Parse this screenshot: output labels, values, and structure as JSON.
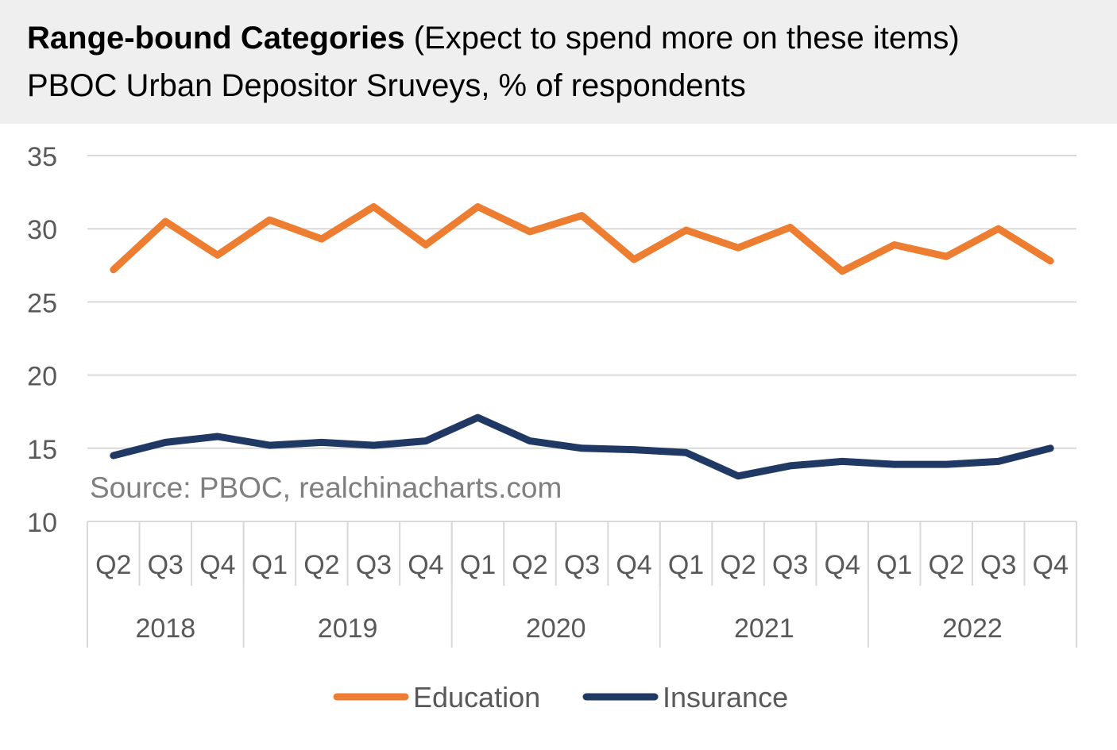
{
  "header": {
    "title_bold": "Range-bound Categories",
    "title_rest": "(Expect to spend more on these items)",
    "subtitle": "PBOC Urban Depositor Sruveys, % of respondents"
  },
  "source_note": "Source: PBOC, realchinacharts.com",
  "colors": {
    "education": "#ED7D31",
    "insurance": "#203864",
    "gridline": "#D9D9D9",
    "axis_text": "#595959",
    "header_bg": "#EFEFEF",
    "source_text": "#7F7F7F"
  },
  "chart_data": {
    "type": "line",
    "title": "Range-bound Categories (Expect to spend more on these items)",
    "subtitle": "PBOC Urban Depositor Sruveys, % of respondents",
    "x": [
      "Q2",
      "Q3",
      "Q4",
      "Q1",
      "Q2",
      "Q3",
      "Q4",
      "Q1",
      "Q2",
      "Q3",
      "Q4",
      "Q1",
      "Q2",
      "Q3",
      "Q4",
      "Q1",
      "Q2",
      "Q3",
      "Q4"
    ],
    "year_groups": [
      {
        "label": "2018",
        "count": 3
      },
      {
        "label": "2019",
        "count": 4
      },
      {
        "label": "2020",
        "count": 4
      },
      {
        "label": "2021",
        "count": 4
      },
      {
        "label": "2022",
        "count": 4
      }
    ],
    "ylim": [
      10,
      35
    ],
    "yticks": [
      10,
      15,
      20,
      25,
      30,
      35
    ],
    "grid": true,
    "legend": "bottom",
    "series": [
      {
        "name": "Education",
        "values": [
          27.2,
          30.5,
          28.2,
          30.6,
          29.3,
          31.5,
          28.9,
          31.5,
          29.8,
          30.9,
          27.9,
          29.9,
          28.7,
          30.1,
          27.1,
          28.9,
          28.1,
          30.0,
          27.8
        ]
      },
      {
        "name": "Insurance",
        "values": [
          14.5,
          15.4,
          15.8,
          15.2,
          15.4,
          15.2,
          15.5,
          17.1,
          15.5,
          15.0,
          14.9,
          14.7,
          13.1,
          13.8,
          14.1,
          13.9,
          13.9,
          14.1,
          15.0
        ]
      }
    ]
  }
}
